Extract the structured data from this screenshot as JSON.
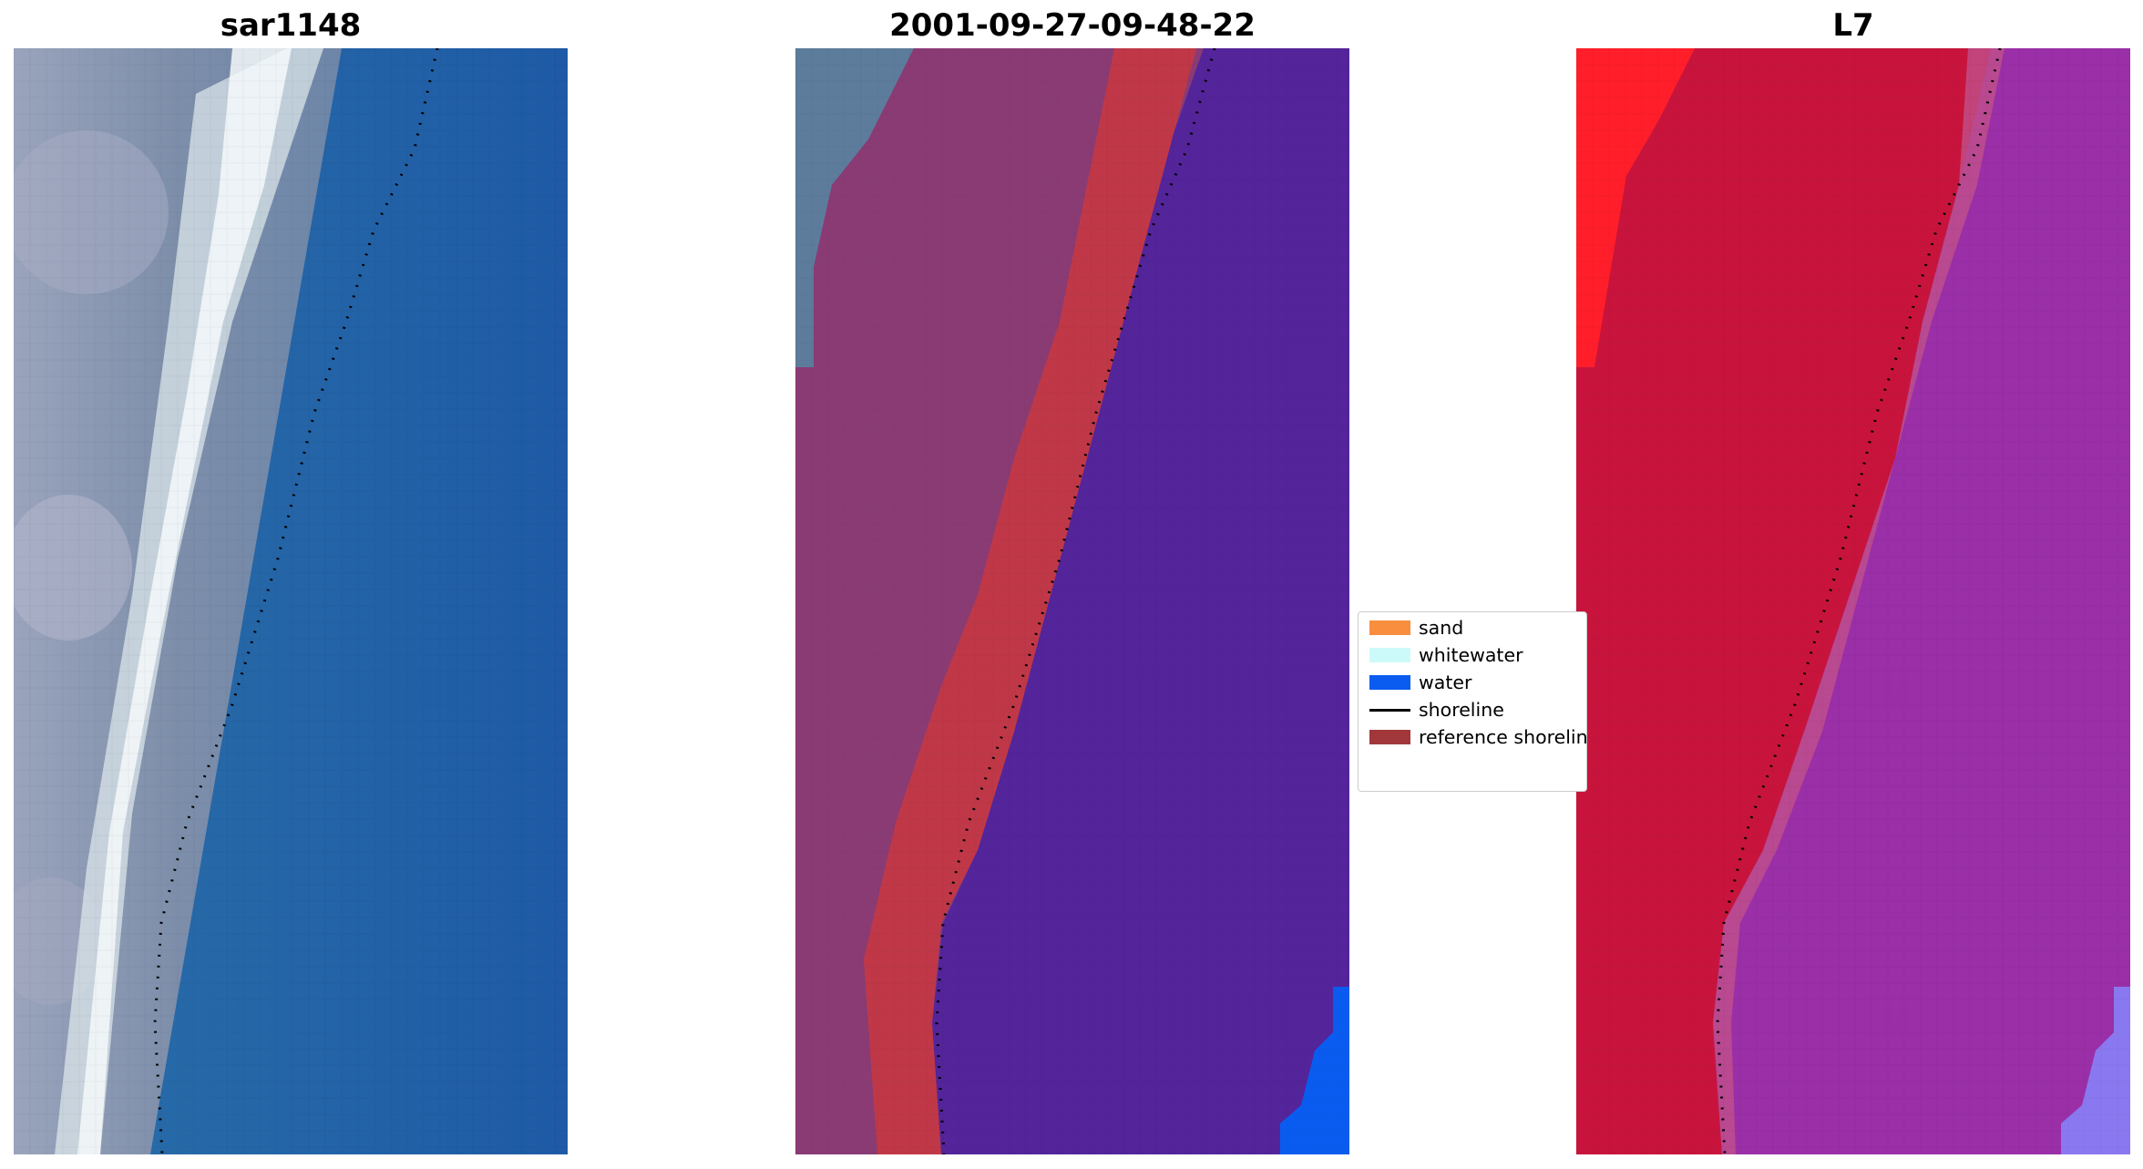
{
  "panels": {
    "rgb": {
      "title": "sar1148"
    },
    "classification": {
      "title": "2001-09-27-09-48-22"
    },
    "mndwi": {
      "title": "L7"
    }
  },
  "legend": {
    "items": [
      {
        "label": "sand",
        "color": "#f88e3e",
        "kind": "patch"
      },
      {
        "label": "whitewater",
        "color": "#ccf9f9",
        "kind": "patch"
      },
      {
        "label": "water",
        "color": "#0a5cf0",
        "kind": "patch"
      },
      {
        "label": "shoreline",
        "color": "#000000",
        "kind": "line"
      },
      {
        "label": "reference shoreline",
        "color": "#a1373b",
        "kind": "patch"
      }
    ]
  },
  "colors": {
    "land_gray": "#8e98b0",
    "ocean_blue": "#1f5fa8",
    "whitewater": "#e6f0f2",
    "class_land": "#8a3b74",
    "class_sand_overlay": "#c03848",
    "class_water": "#54249a",
    "class_water_bright": "#0a5cf0",
    "mndwi_red": "#c8143c",
    "mndwi_bright_red": "#ff1e2a",
    "mndwi_purple": "#9a2fa8",
    "mndwi_lavender": "#8a78f0"
  }
}
